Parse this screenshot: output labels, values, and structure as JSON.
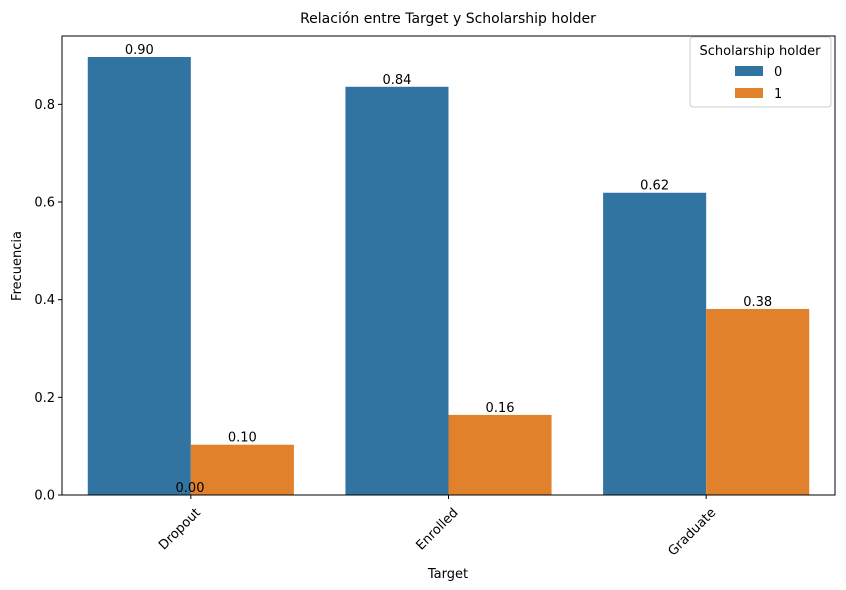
{
  "chart_data": {
    "type": "bar",
    "title": "Relación entre Target y Scholarship holder",
    "xlabel": "Target",
    "ylabel": "Frecuencia",
    "categories": [
      "Dropout",
      "Enrolled",
      "Graduate"
    ],
    "ylim": [
      0,
      0.94
    ],
    "yticks": [
      0.0,
      0.2,
      0.4,
      0.6,
      0.8
    ],
    "ytick_labels": [
      "0.0",
      "0.2",
      "0.4",
      "0.6",
      "0.8"
    ],
    "grid": false,
    "legend": {
      "title": "Scholarship holder",
      "placement": "top-right",
      "entries": [
        "0",
        "1"
      ]
    },
    "series": [
      {
        "name": "0",
        "color": "#3274a1",
        "values": [
          0.897,
          0.836,
          0.619
        ],
        "labels": [
          "0.90",
          "0.84",
          "0.62"
        ]
      },
      {
        "name": "1",
        "color": "#e1812c",
        "values": [
          0.103,
          0.164,
          0.381
        ],
        "labels": [
          "0.10",
          "0.16",
          "0.38"
        ]
      }
    ],
    "annotations": [
      "0.00"
    ]
  }
}
